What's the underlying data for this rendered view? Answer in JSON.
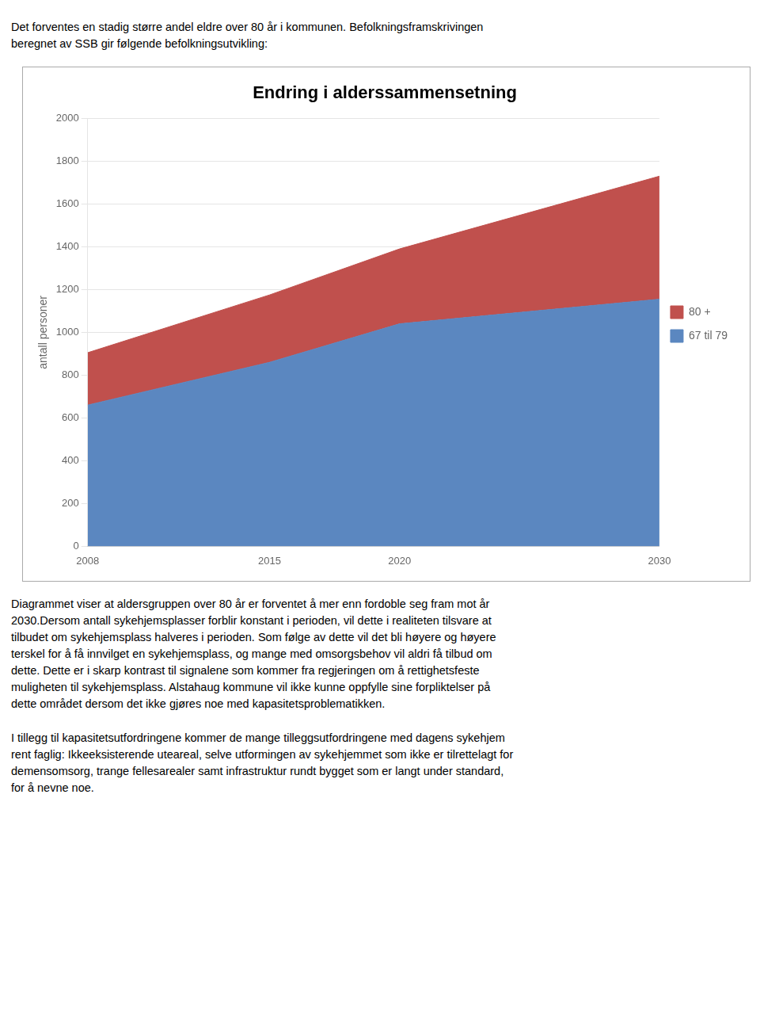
{
  "chart_data": {
    "type": "area",
    "title": "Endring i alderssammensetning",
    "ylabel": "antall personer",
    "x": [
      2008,
      2015,
      2020,
      2030
    ],
    "series": [
      {
        "name": "67 til 79",
        "color": "#5b87c0",
        "values": [
          660,
          860,
          1040,
          1155
        ]
      },
      {
        "name": "80 +",
        "color": "#c0504d",
        "values": [
          245,
          315,
          350,
          575
        ]
      }
    ],
    "stacked": true,
    "xlim": [
      2008,
      2030
    ],
    "xticks": [
      2008,
      2015,
      2020,
      2030
    ],
    "ylim": [
      0,
      2000
    ],
    "yticks": [
      0,
      200,
      400,
      600,
      800,
      1000,
      1200,
      1400,
      1600,
      1800,
      2000
    ],
    "grid": true,
    "legend": "right",
    "annotations": [
      "Det forventes en stadig større andel eldre over 80 år i kommunen. Befolkningsframskrivingen",
      "beregnet av SSB gir følgende befolkningsutvikling:",
      "Diagrammet viser at aldersgruppen over 80 år er forventet å mer enn fordoble seg fram mot år\n2030.Dersom antall sykehjemsplasser forblir konstant i perioden, vil dette i realiteten tilsvare at\ntilbudet om sykehjemsplass halveres i perioden. Som følge av dette vil det bli høyere og høyere\nterskel for å få innvilget en sykehjemsplass, og mange med omsorgsbehov vil aldri få tilbud om\ndette. Dette er i skarp kontrast til signalene som kommer fra regjeringen om å rettighetsfeste\nmuligheten til sykehjemsplass. Alstahaug kommune vil ikke kunne oppfylle sine forpliktelser på\ndette området dersom det ikke gjøres noe med kapasitetsproblematikken.",
      "I tillegg til kapasitetsutfordringene kommer de mange tilleggsutfordringene med dagens sykehjem\nrent faglig: Ikkeeksisterende uteareal, selve utformingen av sykehjemmet som ikke er tilrettelagt for\ndemensomsorg, trange fellesarealer samt infrastruktur rundt bygget som er langt under standard,\nfor å nevne noe."
    ]
  }
}
